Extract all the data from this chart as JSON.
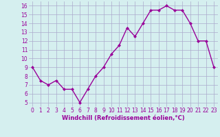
{
  "x": [
    0,
    1,
    2,
    3,
    4,
    5,
    6,
    7,
    8,
    9,
    10,
    11,
    12,
    13,
    14,
    15,
    16,
    17,
    18,
    19,
    20,
    21,
    22,
    23
  ],
  "y": [
    9,
    7.5,
    7,
    7.5,
    6.5,
    6.5,
    5,
    6.5,
    8,
    9,
    10.5,
    11.5,
    13.5,
    12.5,
    14,
    15.5,
    15.5,
    16,
    15.5,
    15.5,
    14,
    12,
    12,
    9
  ],
  "line_color": "#990099",
  "marker": "D",
  "marker_size": 2,
  "line_width": 1,
  "xlabel": "Windchill (Refroidissement éolien,°C)",
  "xlabel_fontsize": 6,
  "xlim": [
    -0.5,
    23.5
  ],
  "ylim": [
    4.5,
    16.5
  ],
  "yticks": [
    5,
    6,
    7,
    8,
    9,
    10,
    11,
    12,
    13,
    14,
    15,
    16
  ],
  "xticks": [
    0,
    1,
    2,
    3,
    4,
    5,
    6,
    7,
    8,
    9,
    10,
    11,
    12,
    13,
    14,
    15,
    16,
    17,
    18,
    19,
    20,
    21,
    22,
    23
  ],
  "background_color": "#d5efef",
  "grid_color": "#aaaacc",
  "tick_fontsize": 5.5
}
